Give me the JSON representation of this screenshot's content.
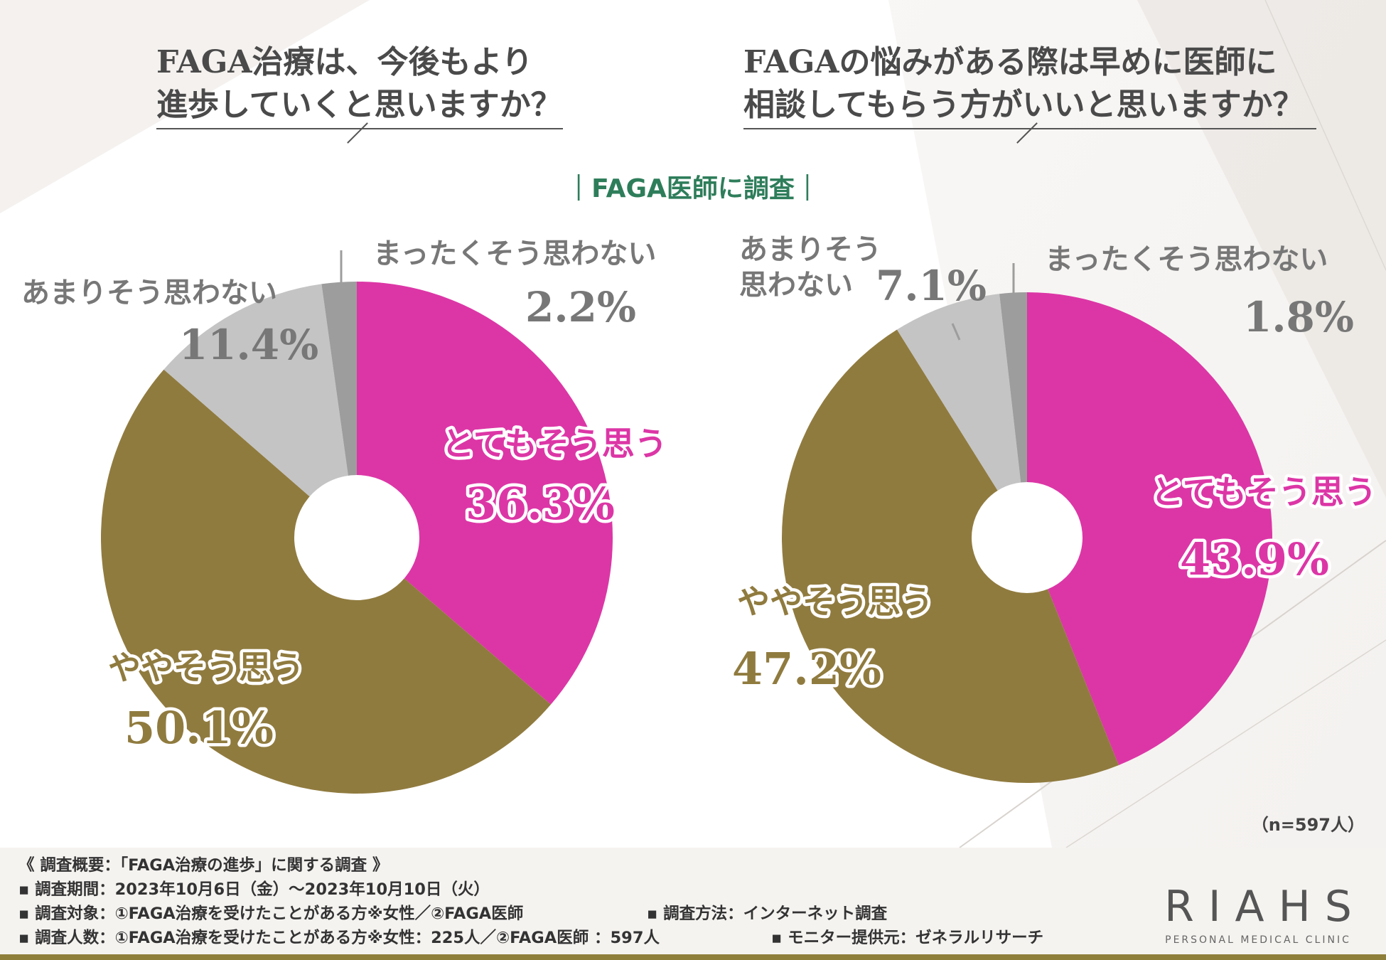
{
  "survey_label": "｜FAGA医師に調査｜",
  "sample_size": "（n=597人）",
  "colors": {
    "pink": "#dc36a6",
    "olive": "#907b3f",
    "light_gray": "#c4c4c4",
    "dark_gray": "#9d9d9d",
    "title": "#4a4a4a",
    "accent_green": "#2e7d5a"
  },
  "questions": [
    {
      "lines": [
        "FAGA治療は、今後もより",
        "進歩していくと思いますか？"
      ]
    },
    {
      "lines": [
        "FAGAの悩みがある際は早めに医師に",
        "相談してもらう方がいいと思いますか？"
      ]
    }
  ],
  "chart_data": [
    {
      "type": "pie",
      "title": "FAGA治療は、今後もより進歩していくと思いますか？",
      "categories": [
        "とてもそう思う",
        "ややそう思う",
        "あまりそう思わない",
        "まったくそう思わない"
      ],
      "values": [
        36.3,
        50.1,
        11.4,
        2.2
      ],
      "value_labels": [
        "36.3%",
        "50.1%",
        "11.4%",
        "2.2%"
      ],
      "label_lines": [
        [
          "とてもそう思う"
        ],
        [
          "ややそう思う"
        ],
        [
          "あまりそう思わない"
        ],
        [
          "まったくそう思わない"
        ]
      ]
    },
    {
      "type": "pie",
      "title": "FAGAの悩みがある際は早めに医師に相談してもらう方がいいと思いますか？",
      "categories": [
        "とてもそう思う",
        "ややそう思う",
        "あまりそう思わない",
        "まったくそう思わない"
      ],
      "values": [
        43.9,
        47.2,
        7.1,
        1.8
      ],
      "value_labels": [
        "43.9%",
        "47.2%",
        "7.1%",
        "1.8%"
      ],
      "label_lines": [
        [
          "とてもそう思う"
        ],
        [
          "ややそう思う"
        ],
        [
          "あまりそう",
          "思わない"
        ],
        [
          "まったくそう思わない"
        ]
      ]
    }
  ],
  "footer": {
    "summary": "《 調査概要：「FAGA治療の進歩」に関する調査 》",
    "period": "▪ 調査期間：2023年10月6日（金）～2023年10月10日（火）",
    "target": "▪ 調査対象：①FAGA治療を受けたことがある方※女性／②FAGA医師",
    "method": "▪ 調査方法：インターネット調査",
    "count": "▪ 調査人数：①FAGA治療を受けたことがある方※女性：225人／②FAGA医師 ：597人",
    "provider": "▪ モニター提供元：ゼネラルリサーチ"
  },
  "brand": {
    "name": "RIAHS",
    "tagline": "PERSONAL MEDICAL CLINIC"
  }
}
